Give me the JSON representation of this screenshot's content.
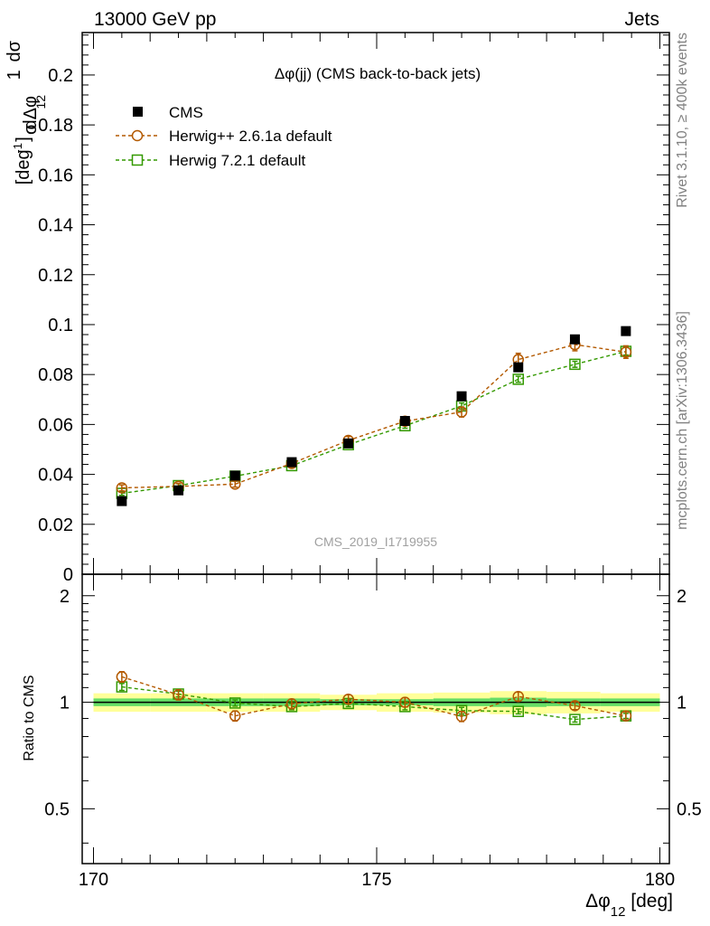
{
  "header": {
    "left": "13000 GeV pp",
    "right": "Jets"
  },
  "side_text": {
    "rivet": "Rivet 3.1.10, ≥ 400k events",
    "mcplots": "mcplots.cern.ch [arXiv:1306.3436]"
  },
  "colors": {
    "cms": "#000000",
    "herwigpp": "#b35900",
    "herwig7": "#339900",
    "band_inner": "#66dd66",
    "band_outer": "#ffff99"
  },
  "chart_data": [
    {
      "type": "scatter",
      "title": "Δφ(jj) (CMS back-to-back jets)",
      "watermark": "CMS_2019_I1719955",
      "ylabel": "1/σ dσ/dΔφ_12 [deg^-1]",
      "xlim": [
        170,
        180
      ],
      "ylim": [
        0,
        0.217
      ],
      "yticks": [
        0,
        0.02,
        0.04,
        0.06,
        0.08,
        0.1,
        0.12,
        0.14,
        0.16,
        0.18,
        0.2
      ],
      "ytick_labels": [
        "0",
        "0.02",
        "0.04",
        "0.06",
        "0.08",
        "0.1",
        "0.12",
        "0.14",
        "0.16",
        "0.18",
        "0.2"
      ],
      "legend_position": "top-left",
      "x": [
        170.5,
        171.5,
        172.5,
        173.5,
        174.5,
        175.5,
        176.5,
        177.5,
        178.5,
        179.4
      ],
      "series": [
        {
          "name": "CMS",
          "marker": "filled-square",
          "values": [
            0.0293,
            0.0336,
            0.0395,
            0.0449,
            0.0524,
            0.0614,
            0.0713,
            0.0829,
            0.0941,
            0.0974
          ]
        },
        {
          "name": "Herwig++ 2.6.1a default",
          "marker": "open-circle",
          "values": [
            0.0346,
            0.0352,
            0.0361,
            0.0444,
            0.0536,
            0.0613,
            0.065,
            0.086,
            0.092,
            0.089
          ],
          "errors": [
            0.0012,
            0.0012,
            0.0012,
            0.0014,
            0.0016,
            0.0018,
            0.002,
            0.0025,
            0.0025,
            0.0025
          ]
        },
        {
          "name": "Herwig 7.2.1 default",
          "marker": "open-square",
          "values": [
            0.0324,
            0.0355,
            0.0393,
            0.0435,
            0.0519,
            0.0595,
            0.0674,
            0.0781,
            0.0841,
            0.0893
          ],
          "errors": [
            0.0008,
            0.0008,
            0.0008,
            0.0008,
            0.001,
            0.001,
            0.0012,
            0.0012,
            0.0012,
            0.0015
          ]
        }
      ]
    },
    {
      "type": "scatter",
      "ylabel": "Ratio to CMS",
      "xlabel": "Δφ_12 [deg]",
      "xlim": [
        170,
        180
      ],
      "ylim": [
        0.35,
        2.3
      ],
      "xticks": [
        170,
        175,
        180
      ],
      "xtick_labels": [
        "170",
        "175",
        "180"
      ],
      "yticks": [
        0.5,
        1,
        2
      ],
      "ytick_labels": [
        "0.5",
        "1",
        "2"
      ],
      "x": [
        170.5,
        171.5,
        172.5,
        173.5,
        174.5,
        175.5,
        176.5,
        177.5,
        178.5,
        179.4
      ],
      "band_inner": [
        0.025,
        0.025,
        0.025,
        0.025,
        0.02,
        0.02,
        0.025,
        0.03,
        0.025,
        0.025
      ],
      "band_outer": [
        0.06,
        0.06,
        0.06,
        0.06,
        0.05,
        0.06,
        0.065,
        0.075,
        0.07,
        0.06
      ],
      "series": [
        {
          "name": "Herwig++ 2.6.1a default",
          "values": [
            1.18,
            1.05,
            0.915,
            0.99,
            1.02,
            1.0,
            0.912,
            1.038,
            0.978,
            0.915
          ],
          "errors": [
            0.04,
            0.035,
            0.03,
            0.03,
            0.03,
            0.03,
            0.03,
            0.03,
            0.025,
            0.025
          ]
        },
        {
          "name": "Herwig 7.2.1 default",
          "values": [
            1.105,
            1.055,
            0.995,
            0.972,
            0.992,
            0.972,
            0.947,
            0.942,
            0.894,
            0.915
          ],
          "errors": [
            0.025,
            0.02,
            0.02,
            0.02,
            0.02,
            0.02,
            0.02,
            0.015,
            0.015,
            0.015
          ]
        }
      ]
    }
  ]
}
